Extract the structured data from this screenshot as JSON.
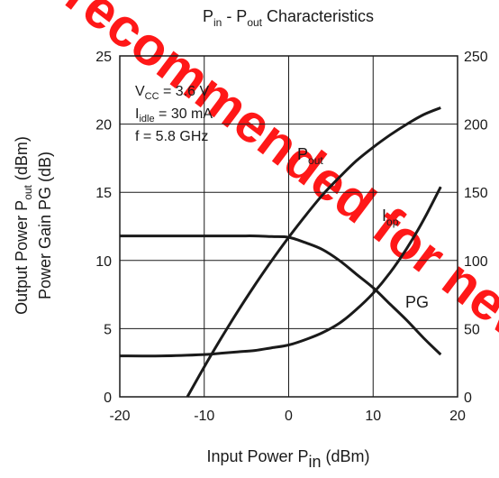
{
  "chart_data": {
    "type": "line",
    "title": {
      "main": "P",
      "sub1": "in",
      "mid": " - P",
      "sub2": "out",
      "tail": " Characteristics"
    },
    "xlabel": {
      "main": "Input Power P",
      "sub": "in",
      "tail": " (dBm)"
    },
    "ylabel_left": {
      "line1": {
        "main": "Output Power P",
        "sub": "out",
        "tail": " (dBm)"
      },
      "line2": "Power Gain  PG (dB)"
    },
    "xlim": [
      -20,
      20
    ],
    "ylim_left": [
      0,
      25
    ],
    "ylim_right": [
      0,
      250
    ],
    "x_ticks": [
      "-20",
      "-10",
      "0",
      "10",
      "20"
    ],
    "y_ticks_left": [
      "0",
      "5",
      "10",
      "15",
      "20",
      "25"
    ],
    "y_ticks_right": [
      "0",
      "50",
      "100",
      "150",
      "200",
      "250"
    ],
    "grid": true,
    "conditions": [
      {
        "main": "V",
        "sub": "CC",
        "tail": " = 3.6 V"
      },
      {
        "main": "I",
        "sub": "idle",
        "tail": " = 30 mA"
      },
      {
        "main": "f = 5.8 GHz",
        "sub": "",
        "tail": ""
      }
    ],
    "series": [
      {
        "name": "Pout",
        "label": {
          "main": "P",
          "sub": "out"
        },
        "axis": "left",
        "x": [
          -12,
          -10,
          -8,
          -6,
          -4,
          -2,
          0,
          2,
          4,
          6,
          8,
          10,
          12,
          14,
          16,
          18
        ],
        "y": [
          0,
          2.2,
          4.3,
          6.3,
          8.2,
          10.0,
          11.7,
          13.3,
          14.8,
          16.1,
          17.3,
          18.3,
          19.2,
          20.0,
          20.7,
          21.2
        ]
      },
      {
        "name": "Iop",
        "label": {
          "main": "I",
          "sub": "op"
        },
        "axis": "right",
        "x": [
          -20,
          -15,
          -10,
          -8,
          -6,
          -4,
          -2,
          0,
          2,
          4,
          6,
          8,
          10,
          12,
          14,
          16,
          18
        ],
        "y": [
          30,
          30,
          31,
          32,
          33,
          34,
          36,
          38,
          42,
          47,
          54,
          64,
          76,
          91,
          109,
          130,
          154
        ]
      },
      {
        "name": "PG",
        "label": {
          "main": "PG",
          "sub": ""
        },
        "axis": "left",
        "x": [
          -20,
          -15,
          -10,
          -6,
          -4,
          -2,
          0,
          2,
          4,
          6,
          8,
          10,
          12,
          14,
          16,
          18
        ],
        "y": [
          11.8,
          11.8,
          11.8,
          11.8,
          11.8,
          11.75,
          11.7,
          11.3,
          10.8,
          10.0,
          9.0,
          8.0,
          6.8,
          5.6,
          4.3,
          3.1
        ]
      }
    ],
    "colors": {
      "curve": "#1a1a1a",
      "grid": "#1a1a1a",
      "watermark": "#ff0000"
    },
    "watermark": "not recommended for new designs"
  }
}
